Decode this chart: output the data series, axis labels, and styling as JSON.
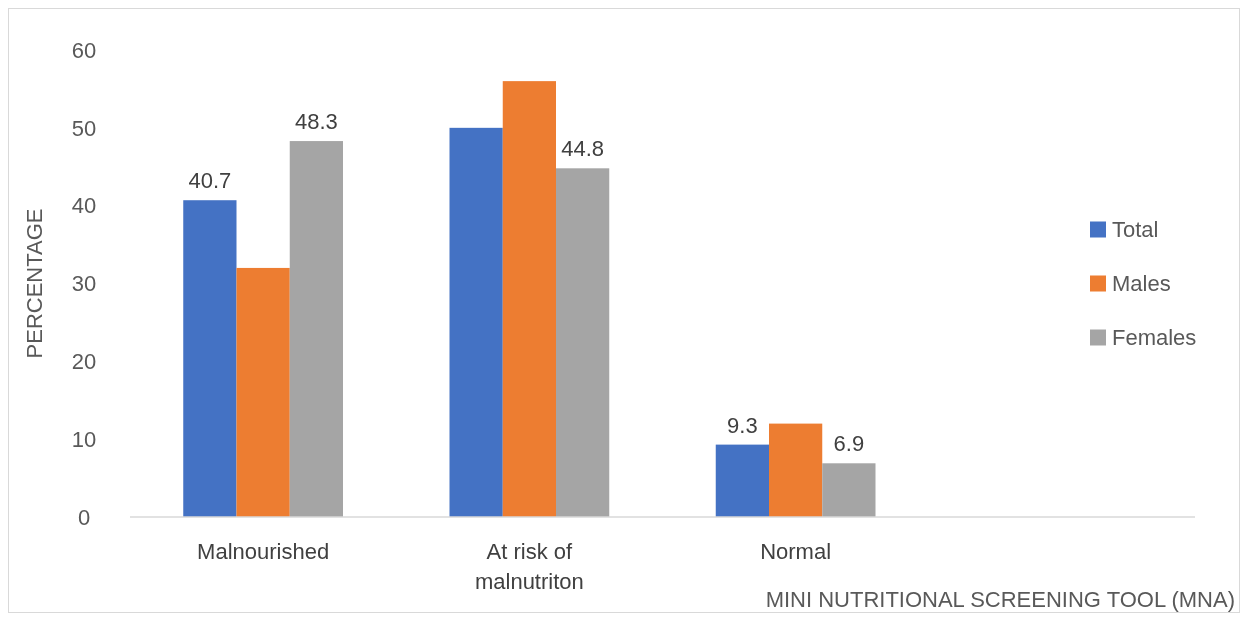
{
  "chart_data": {
    "type": "bar",
    "xlabel": "MINI NUTRITIONAL SCREENING TOOL (MNA)",
    "ylabel": "PERCENTAGE",
    "categories": [
      "Malnourished",
      "At risk of malnutriton",
      "Normal",
      null
    ],
    "series": [
      {
        "name": "Total",
        "color": "#4472c4",
        "values": [
          40.7,
          50,
          9.3,
          null
        ],
        "value_labels": [
          "40.7",
          null,
          "9.3",
          null
        ]
      },
      {
        "name": "Males",
        "color": "#ed7d31",
        "values": [
          32,
          56,
          12,
          null
        ]
      },
      {
        "name": "Females",
        "color": "#a5a5a5",
        "values": [
          48.3,
          44.8,
          6.9,
          null
        ],
        "value_labels": [
          "48.3",
          "44.8",
          "6.9",
          null
        ]
      }
    ],
    "ylim": [
      0,
      60
    ],
    "yticks": [
      0,
      10,
      20,
      30,
      40,
      50,
      60
    ],
    "grid": false,
    "legend": "right"
  }
}
